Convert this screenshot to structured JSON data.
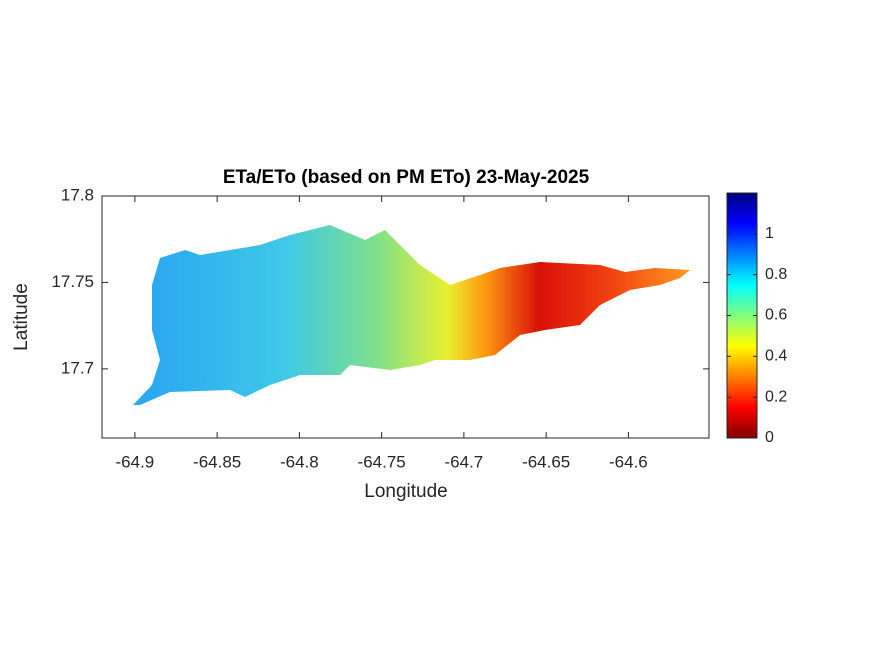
{
  "chart_data": {
    "type": "raster-map",
    "title": "ETa/ETo (based on PM ETo) 23-May-2025",
    "xlabel": "Longitude",
    "ylabel": "Latitude",
    "xlim": [
      -64.92,
      -64.551
    ],
    "xticks": [
      -64.9,
      -64.85,
      -64.8,
      -64.75,
      -64.7,
      -64.65,
      -64.6
    ],
    "ylim": [
      17.66,
      17.8
    ],
    "yticks": [
      17.7,
      17.75,
      17.8
    ],
    "colormap": "jet",
    "clim": [
      0,
      1.2
    ],
    "cticks": [
      0,
      0.2,
      0.4,
      0.6,
      0.8,
      1
    ]
  }
}
